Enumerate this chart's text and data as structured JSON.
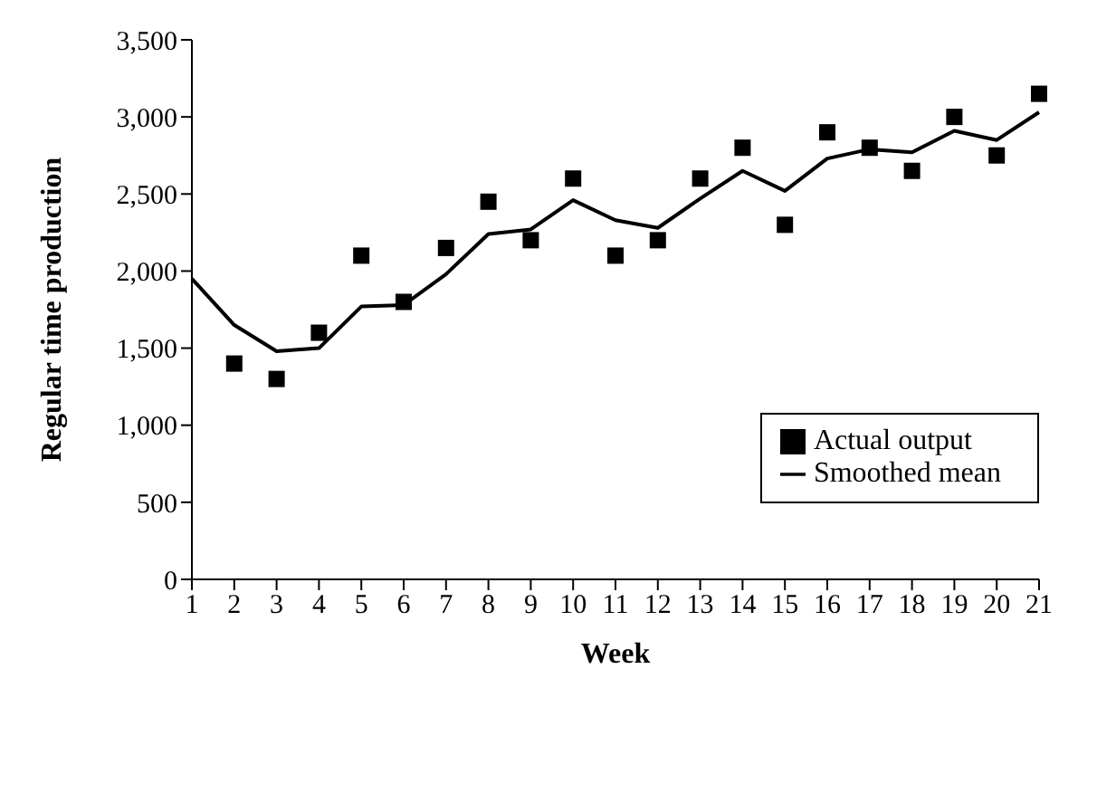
{
  "chart_data": {
    "type": "line",
    "xlabel": "Week",
    "ylabel": "Regular time production",
    "xlim": [
      1,
      21
    ],
    "xticks": [
      1,
      2,
      3,
      4,
      5,
      6,
      7,
      8,
      9,
      10,
      11,
      12,
      13,
      14,
      15,
      16,
      17,
      18,
      19,
      20,
      21
    ],
    "ylim": [
      0,
      3500
    ],
    "yticks": [
      0,
      500,
      {
        "value": 1000,
        "label": "1,000"
      },
      {
        "value": 1500,
        "label": "1,500"
      },
      {
        "value": 2000,
        "label": "2,000"
      },
      {
        "value": 2500,
        "label": "2,500"
      },
      {
        "value": 3000,
        "label": "3,000"
      },
      {
        "value": 3500,
        "label": "3,500"
      }
    ],
    "grid": false,
    "legend": "bottom right",
    "series": [
      {
        "name": "Actual output",
        "type": "scatter",
        "marker": "square",
        "color": "#000000",
        "x": [
          2,
          3,
          4,
          5,
          6,
          7,
          8,
          9,
          10,
          11,
          12,
          13,
          14,
          15,
          16,
          17,
          18,
          19,
          20,
          21
        ],
        "values": [
          1400,
          1300,
          1600,
          2100,
          1800,
          2150,
          2450,
          2200,
          2600,
          2100,
          2200,
          2600,
          2800,
          2300,
          2900,
          2800,
          2650,
          3000,
          2750,
          3150
        ]
      },
      {
        "name": "Smoothed mean",
        "type": "line",
        "marker": "none",
        "line_style": "solid",
        "color": "#000000",
        "x": [
          1,
          2,
          3,
          4,
          5,
          6,
          7,
          8,
          9,
          10,
          11,
          12,
          13,
          14,
          15,
          16,
          17,
          18,
          19,
          20,
          21
        ],
        "values": [
          1950,
          1650,
          1480,
          1500,
          1770,
          1780,
          1980,
          2240,
          2270,
          2460,
          2330,
          2280,
          2470,
          2650,
          2520,
          2730,
          2790,
          2770,
          2910,
          2850,
          3030
        ]
      }
    ]
  }
}
